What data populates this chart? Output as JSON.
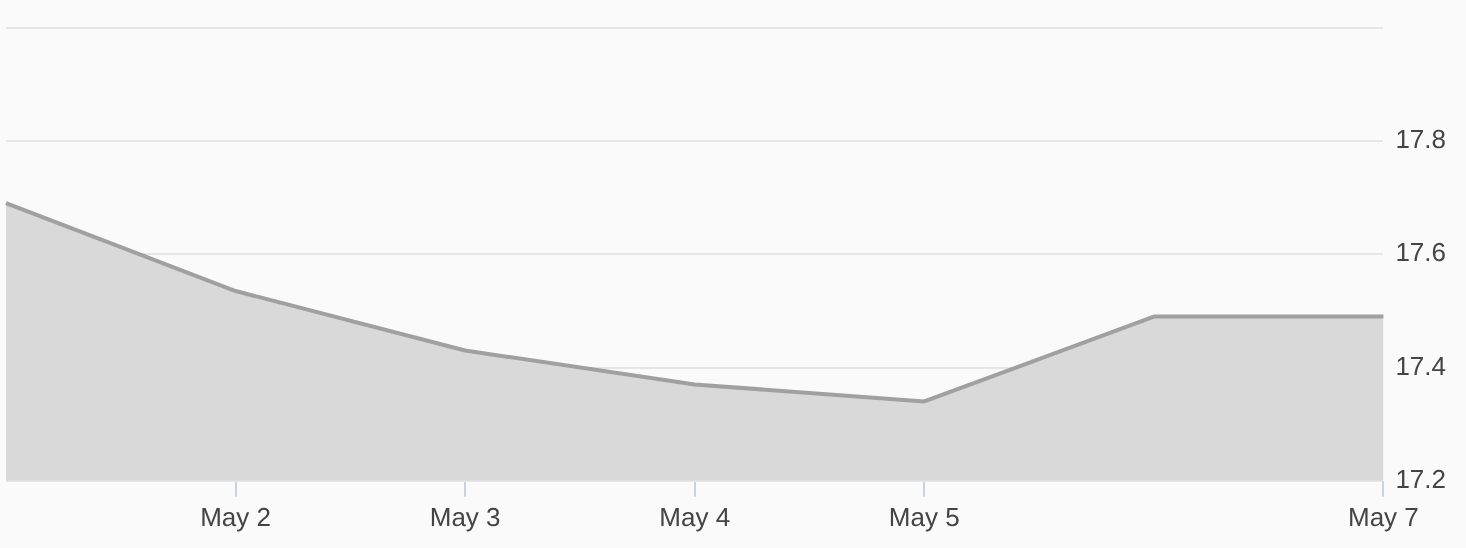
{
  "chart_data": {
    "type": "area",
    "categories": [
      null,
      "May 2",
      "May 3",
      "May 4",
      "May 5",
      null,
      "May 7"
    ],
    "series": [
      {
        "color": "#a0a0a0",
        "values": [
          17.69,
          17.535,
          17.43,
          17.37,
          17.34,
          17.49,
          17.49
        ]
      }
    ],
    "ylim": [
      17.2,
      18.0
    ],
    "yticks": [
      17.2,
      17.4,
      17.6,
      17.8,
      {
        "value": 18.0,
        "label": null
      }
    ],
    "grid": "y",
    "legend": false,
    "marker": "none",
    "line_style": "solid"
  }
}
